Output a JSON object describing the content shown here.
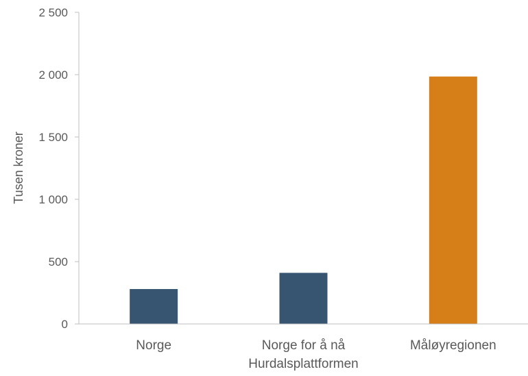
{
  "chart_data": {
    "type": "bar",
    "title": "",
    "xlabel": "",
    "ylabel": "Tusen kroner",
    "ylim": [
      0,
      2500
    ],
    "yticks": [
      0,
      500,
      1000,
      1500,
      2000,
      2500
    ],
    "ytick_labels": [
      "0",
      "500",
      "1 000",
      "1 500",
      "2 000",
      "2 500"
    ],
    "categories": [
      [
        "Norge"
      ],
      [
        "Norge for å nå",
        "Hurdalsplattformen"
      ],
      [
        "Måløyregionen"
      ]
    ],
    "values": [
      280,
      410,
      1985
    ],
    "colors": [
      "#375571",
      "#375571",
      "#d67e17"
    ],
    "grid": false,
    "legend": "none"
  }
}
